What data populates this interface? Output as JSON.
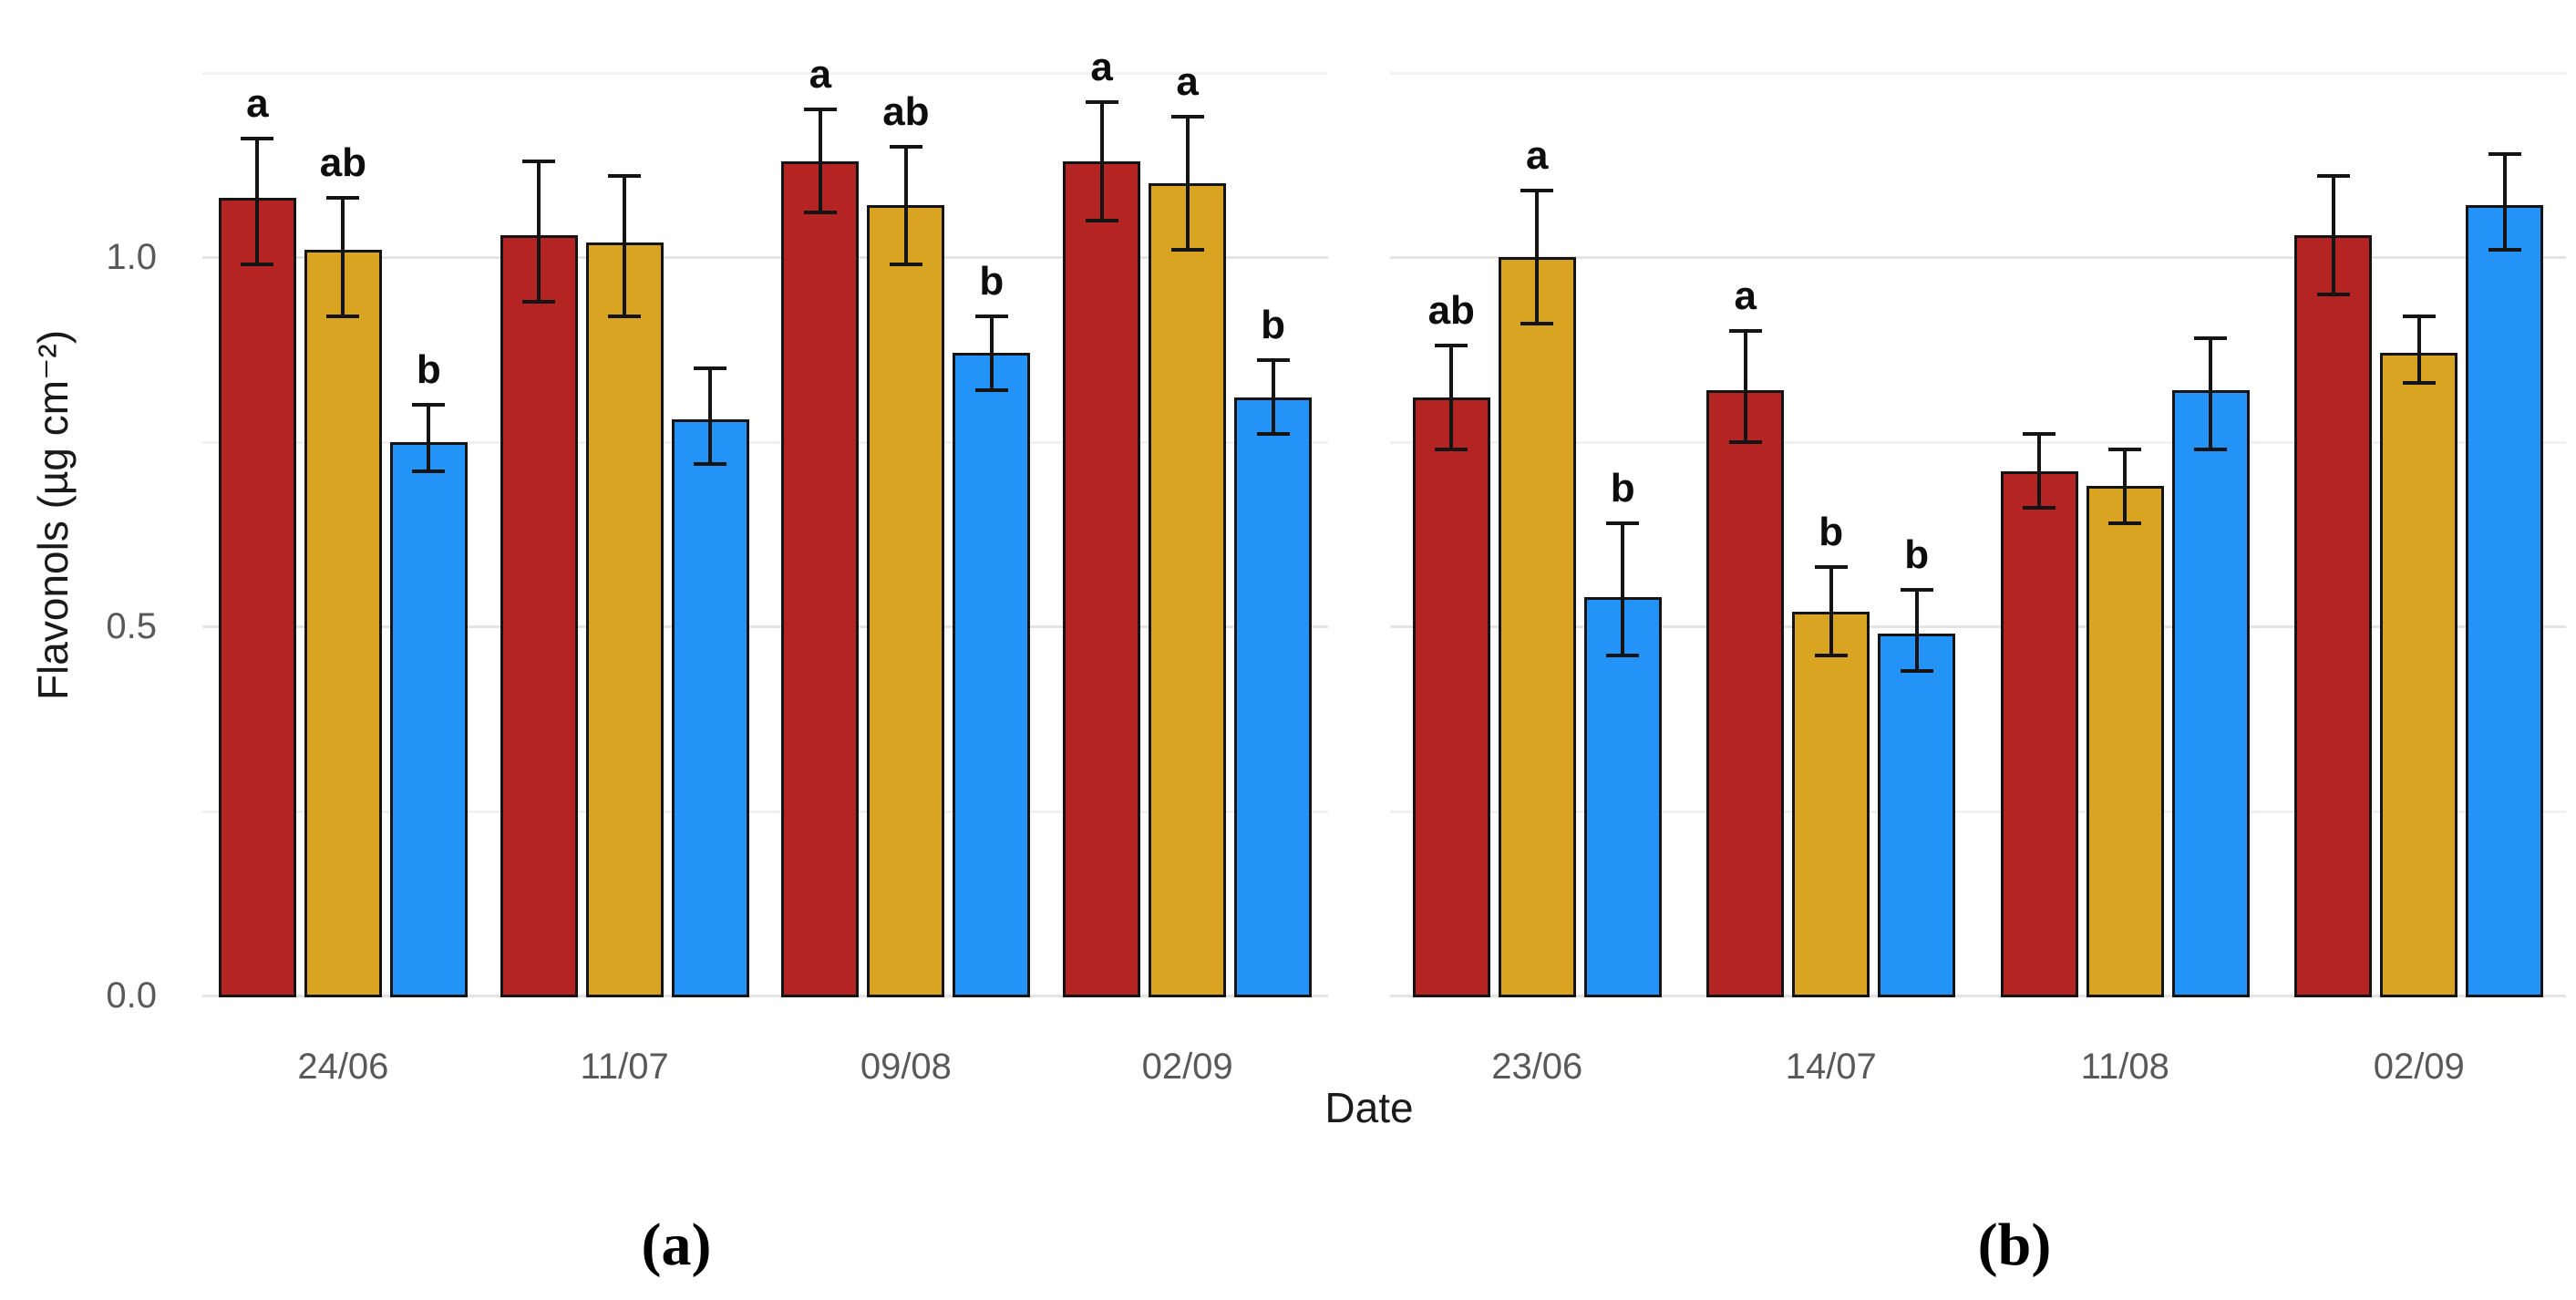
{
  "axes": {
    "y_title": "Flavonols (µg cm⁻²)",
    "x_title": "Date",
    "y_ticks": [
      "0.0",
      "0.5",
      "1.0"
    ],
    "y_tick_values": [
      0,
      0.5,
      1.0
    ],
    "y_minor_values": [
      0.25,
      0.75,
      1.25
    ],
    "ylim": [
      0,
      1.3
    ],
    "grid": "on",
    "legend": "none"
  },
  "captions": {
    "a": "(a)",
    "b": "(b)"
  },
  "colors": {
    "red": "#b42423",
    "gold": "#d9a421",
    "blue": "#2493f7",
    "bar_outline": "#141414",
    "error_bar": "#141414",
    "grid_major": "#e4e4e4",
    "grid_minor": "#f1f1f1",
    "tick_label": "#595959",
    "axis_title": "#1a1a1a",
    "letter": "#0d0d0d"
  },
  "chart_data": [
    {
      "type": "bar",
      "panel": "a",
      "title": "",
      "xlabel": "Date",
      "ylabel": "Flavonols (µg cm⁻²)",
      "ylim": [
        0,
        1.3
      ],
      "categories": [
        "24/06",
        "11/07",
        "09/08",
        "02/09"
      ],
      "series": [
        {
          "name": "red",
          "color": "#b42423",
          "values": [
            1.08,
            1.03,
            1.13,
            1.13
          ],
          "err_low": [
            0.99,
            0.94,
            1.06,
            1.05
          ],
          "err_high": [
            1.16,
            1.13,
            1.2,
            1.21
          ],
          "letters": [
            "a",
            "",
            "a",
            "a"
          ]
        },
        {
          "name": "gold",
          "color": "#d9a421",
          "values": [
            1.01,
            1.02,
            1.07,
            1.1
          ],
          "err_low": [
            0.92,
            0.92,
            0.99,
            1.01
          ],
          "err_high": [
            1.08,
            1.11,
            1.15,
            1.19
          ],
          "letters": [
            "ab",
            "",
            "ab",
            "a"
          ]
        },
        {
          "name": "blue",
          "color": "#2493f7",
          "values": [
            0.75,
            0.78,
            0.87,
            0.81
          ],
          "err_low": [
            0.71,
            0.72,
            0.82,
            0.76
          ],
          "err_high": [
            0.8,
            0.85,
            0.92,
            0.86
          ],
          "letters": [
            "b",
            "",
            "b",
            "b"
          ]
        }
      ]
    },
    {
      "type": "bar",
      "panel": "b",
      "title": "",
      "xlabel": "Date",
      "ylabel": "Flavonols (µg cm⁻²)",
      "ylim": [
        0,
        1.3
      ],
      "categories": [
        "23/06",
        "14/07",
        "11/08",
        "02/09"
      ],
      "series": [
        {
          "name": "red",
          "color": "#b42423",
          "values": [
            0.81,
            0.82,
            0.71,
            1.03
          ],
          "err_low": [
            0.74,
            0.75,
            0.66,
            0.95
          ],
          "err_high": [
            0.88,
            0.9,
            0.76,
            1.11
          ],
          "letters": [
            "ab",
            "a",
            "",
            ""
          ]
        },
        {
          "name": "gold",
          "color": "#d9a421",
          "values": [
            1.0,
            0.52,
            0.69,
            0.87
          ],
          "err_low": [
            0.91,
            0.46,
            0.64,
            0.83
          ],
          "err_high": [
            1.09,
            0.58,
            0.74,
            0.92
          ],
          "letters": [
            "a",
            "b",
            "",
            ""
          ]
        },
        {
          "name": "blue",
          "color": "#2493f7",
          "values": [
            0.54,
            0.49,
            0.82,
            1.07
          ],
          "err_low": [
            0.46,
            0.44,
            0.74,
            1.01
          ],
          "err_high": [
            0.64,
            0.55,
            0.89,
            1.14
          ],
          "letters": [
            "b",
            "b",
            "",
            ""
          ]
        }
      ]
    }
  ]
}
